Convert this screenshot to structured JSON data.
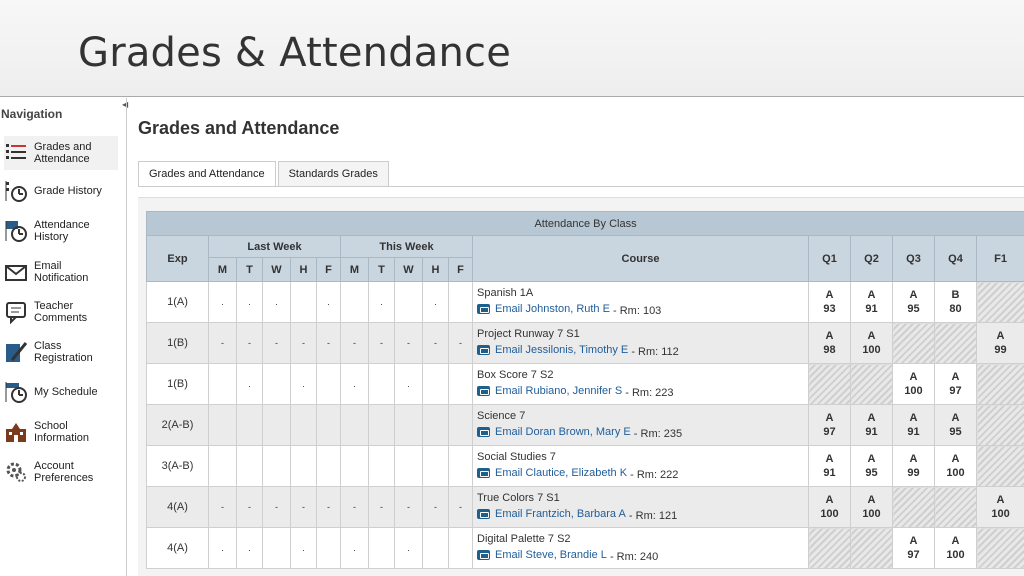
{
  "slide_title": "Grades & Attendance",
  "nav": {
    "title": "Navigation",
    "items": [
      {
        "label": "Grades and Attendance"
      },
      {
        "label": "Grade History"
      },
      {
        "label": "Attendance History"
      },
      {
        "label": "Email Notification"
      },
      {
        "label": "Teacher Comments"
      },
      {
        "label": "Class Registration"
      },
      {
        "label": "My Schedule"
      },
      {
        "label": "School Information"
      },
      {
        "label": "Account Preferences"
      }
    ]
  },
  "page": {
    "heading": "Grades and Attendance",
    "tabs": [
      "Grades and Attendance",
      "Standards Grades"
    ]
  },
  "table": {
    "title": "Attendance By Class",
    "headers": {
      "exp": "Exp",
      "last_week": "Last Week",
      "this_week": "This Week",
      "days": [
        "M",
        "T",
        "W",
        "H",
        "F"
      ],
      "course": "Course",
      "terms": [
        "Q1",
        "Q2",
        "Q3",
        "Q4",
        "F1"
      ]
    },
    "rows": [
      {
        "exp": "1(A)",
        "days": [
          ".",
          ".",
          ".",
          "",
          ".",
          "",
          ".",
          "",
          ".",
          ""
        ],
        "course": "Spanish 1A",
        "email": "Email Johnston, Ruth E",
        "room": " - Rm: 103",
        "grades": [
          [
            "A",
            "93"
          ],
          [
            "A",
            "91"
          ],
          [
            "A",
            "95"
          ],
          [
            "B",
            "80"
          ],
          null
        ]
      },
      {
        "exp": "1(B)",
        "days": [
          "-",
          "-",
          "-",
          "-",
          "-",
          "-",
          "-",
          "-",
          "-",
          "-"
        ],
        "course": "Project Runway 7 S1",
        "email": "Email Jessilonis, Timothy E",
        "room": " - Rm: 112",
        "grades": [
          [
            "A",
            "98"
          ],
          [
            "A",
            "100"
          ],
          null,
          null,
          [
            "A",
            "99"
          ]
        ]
      },
      {
        "exp": "1(B)",
        "days": [
          "",
          ".",
          "",
          ".",
          "",
          ".",
          "",
          ".",
          "",
          ""
        ],
        "course": "Box Score 7 S2",
        "email": "Email Rubiano, Jennifer S",
        "room": " - Rm: 223",
        "grades": [
          null,
          null,
          [
            "A",
            "100"
          ],
          [
            "A",
            "97"
          ],
          null
        ]
      },
      {
        "exp": "2(A-B)",
        "days": [
          "",
          "",
          "",
          "",
          "",
          "",
          "",
          "",
          "",
          ""
        ],
        "course": "Science 7",
        "email": "Email Doran Brown, Mary E",
        "room": " - Rm: 235",
        "grades": [
          [
            "A",
            "97"
          ],
          [
            "A",
            "91"
          ],
          [
            "A",
            "91"
          ],
          [
            "A",
            "95"
          ],
          null
        ]
      },
      {
        "exp": "3(A-B)",
        "days": [
          "",
          "",
          "",
          "",
          "",
          "",
          "",
          "",
          "",
          ""
        ],
        "course": "Social Studies 7",
        "email": "Email Clautice, Elizabeth K",
        "room": " - Rm: 222",
        "grades": [
          [
            "A",
            "91"
          ],
          [
            "A",
            "95"
          ],
          [
            "A",
            "99"
          ],
          [
            "A",
            "100"
          ],
          null
        ]
      },
      {
        "exp": "4(A)",
        "days": [
          "-",
          "-",
          "-",
          "-",
          "-",
          "-",
          "-",
          "-",
          "-",
          "-"
        ],
        "course": "True Colors 7 S1",
        "email": "Email Frantzich, Barbara A",
        "room": " - Rm: 121",
        "grades": [
          [
            "A",
            "100"
          ],
          [
            "A",
            "100"
          ],
          null,
          null,
          [
            "A",
            "100"
          ]
        ]
      },
      {
        "exp": "4(A)",
        "days": [
          ".",
          ".",
          "",
          ".",
          "",
          ".",
          "",
          ".",
          "",
          ""
        ],
        "course": "Digital Palette 7 S2",
        "email": "Email Steve, Brandie L",
        "room": " - Rm: 240",
        "grades": [
          null,
          null,
          [
            "A",
            "97"
          ],
          [
            "A",
            "100"
          ],
          null
        ]
      }
    ]
  }
}
